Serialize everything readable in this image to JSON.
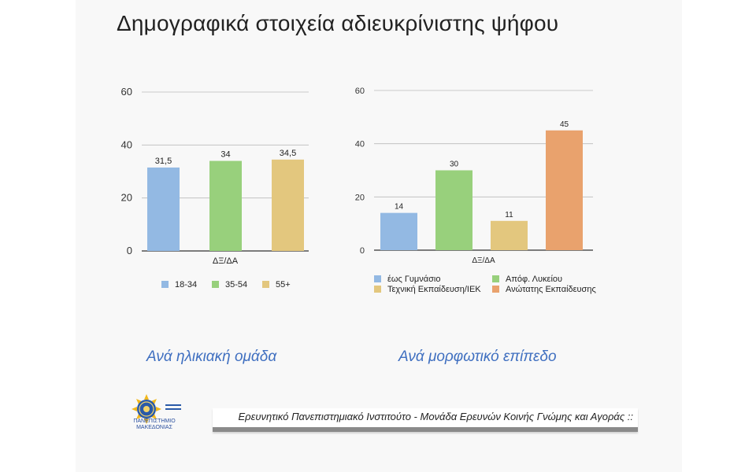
{
  "title": "Δημογραφικά στοιχεία αδιευκρίνιστης ψήφου",
  "colors": {
    "blue": "#93b9e3",
    "green": "#98d07c",
    "yellow": "#e3c77e",
    "orange": "#e9a26d",
    "grid": "#bbbbbb"
  },
  "chart_data": [
    {
      "type": "bar",
      "title": "",
      "xlabel": "ΔΞ/ΔΑ",
      "ylabel": "",
      "ylim": [
        0,
        60
      ],
      "yticks": [
        "0",
        "20",
        "40",
        "60"
      ],
      "categories": [
        "ΔΞ/ΔΑ"
      ],
      "series": [
        {
          "name": "18-34",
          "value": 31.5,
          "label": "31,5",
          "color": "#93b9e3"
        },
        {
          "name": "35-54",
          "value": 34,
          "label": "34",
          "color": "#98d07c"
        },
        {
          "name": "55+",
          "value": 34.5,
          "label": "34,5",
          "color": "#e3c77e"
        }
      ],
      "legend_position": "bottom",
      "caption": "Ανά ηλικιακή ομάδα"
    },
    {
      "type": "bar",
      "title": "",
      "xlabel": "ΔΞ/ΔΑ",
      "ylabel": "",
      "ylim": [
        0,
        60
      ],
      "yticks": [
        "0",
        "20",
        "40",
        "60"
      ],
      "categories": [
        "ΔΞ/ΔΑ"
      ],
      "series": [
        {
          "name": "έως Γυμνάσιο",
          "value": 14,
          "label": "14",
          "color": "#93b9e3"
        },
        {
          "name": "Απόφ. Λυκείου",
          "value": 30,
          "label": "30",
          "color": "#98d07c"
        },
        {
          "name": "Τεχνική Εκπαίδευση/ΙΕΚ",
          "value": 11,
          "label": "11",
          "color": "#e3c77e"
        },
        {
          "name": "Ανώτατης Εκπαίδευσης",
          "value": 45,
          "label": "45",
          "color": "#e9a26d"
        }
      ],
      "legend_position": "bottom",
      "caption": "Ανά μορφωτικό επίπεδο"
    }
  ],
  "logo": {
    "name": "ΠΑΝΕΠΙΣΤΗΜΙΟ ΜΑΚΕΔΟΝΙΑΣ"
  },
  "footer": {
    "text": "Ερευνητικό Πανεπιστημιακό Ινστιτούτο - Μονάδα Ερευνών Κοινής Γνώμης και Αγοράς ::"
  }
}
